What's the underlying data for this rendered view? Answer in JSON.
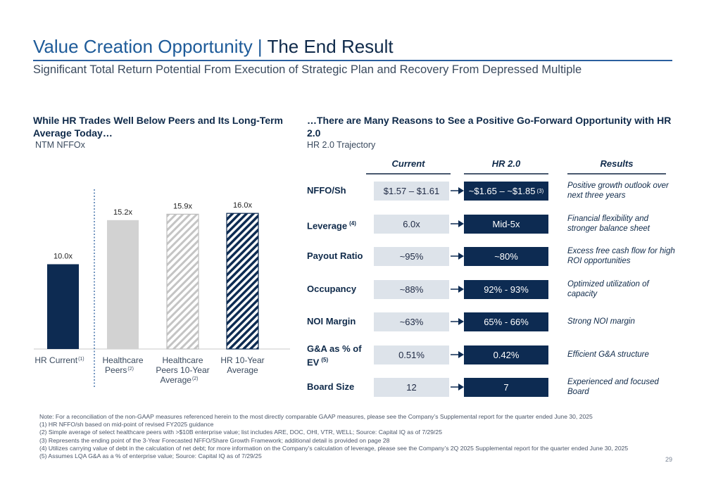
{
  "header": {
    "title_part1": "Value Creation Opportunity",
    "title_sep": " | ",
    "title_part2": "The End Result",
    "subtitle": "Significant Total Return Potential From Execution of Strategic Plan and Recovery From Depressed Multiple"
  },
  "left": {
    "heading": "While HR Trades Well Below Peers and Its Long-Term Average Today…",
    "subheading": "NTM NFFOx"
  },
  "chart_data": {
    "type": "bar",
    "categories": [
      "HR Current",
      "Healthcare Peers",
      "Healthcare Peers 10-Year Average",
      "HR 10-Year Average"
    ],
    "category_lines": [
      [
        "HR Current"
      ],
      [
        "Healthcare",
        "Peers"
      ],
      [
        "Healthcare",
        "Peers 10-Year",
        "Average"
      ],
      [
        "HR 10-Year",
        "Average"
      ]
    ],
    "category_footnotes": [
      "(1)",
      "(2)",
      "(2)",
      ""
    ],
    "values": [
      10.0,
      15.2,
      15.9,
      16.0
    ],
    "data_labels": [
      "10.0x",
      "15.2x",
      "15.9x",
      "16.0x"
    ],
    "fills": [
      "solid-navy",
      "solid-gray",
      "hatched-gray",
      "hatched-navy"
    ],
    "colors": {
      "navy": "#0d2b52",
      "gray": "#d2d2d2",
      "hatch_gray": "#bdbdbd"
    },
    "ylim": [
      0,
      18
    ],
    "grid": false,
    "title": "",
    "xlabel": "",
    "ylabel": ""
  },
  "right": {
    "heading": "…There are Many Reasons to See a Positive Go-Forward Opportunity with HR 2.0",
    "subheading": "HR 2.0 Trajectory",
    "col_current": "Current",
    "col_hr2": "HR 2.0",
    "col_results": "Results",
    "rows": [
      {
        "label": "NFFO/Sh",
        "label_sup": "",
        "current": "$1.57 – $1.61",
        "hr2": "~$1.65 – ~$1.85",
        "hr2_sup": "(3)",
        "result": "Positive growth outlook over next three years"
      },
      {
        "label": "Leverage",
        "label_sup": "(4)",
        "current": "6.0x",
        "hr2": "Mid-5x",
        "hr2_sup": "",
        "result": "Financial flexibility and stronger balance sheet"
      },
      {
        "label": "Payout Ratio",
        "label_sup": "",
        "current": "~95%",
        "hr2": "~80%",
        "hr2_sup": "",
        "result": "Excess free cash flow for high ROI opportunities"
      },
      {
        "label": "Occupancy",
        "label_sup": "",
        "current": "~88%",
        "hr2": "92% - 93%",
        "hr2_sup": "",
        "result": "Optimized utilization of capacity"
      },
      {
        "label": "NOI Margin",
        "label_sup": "",
        "current": "~63%",
        "hr2": "65% - 66%",
        "hr2_sup": "",
        "result": "Strong NOI margin"
      },
      {
        "label": "G&A as % of EV",
        "label_sup": "(5)",
        "current": "0.51%",
        "hr2": "0.42%",
        "hr2_sup": "",
        "result": "Efficient G&A structure"
      },
      {
        "label": "Board Size",
        "label_sup": "",
        "current": "12",
        "hr2": "7",
        "hr2_sup": "",
        "result": "Experienced and focused Board"
      }
    ]
  },
  "notes": [
    "Note: For a reconciliation of the non-GAAP measures referenced herein to the most directly comparable GAAP measures, please see the Company’s Supplemental report for the quarter ended June 30, 2025",
    "(1)   HR NFFO/sh based on mid-point of revised FY2025 guidance",
    "(2)   Simple average of select healthcare peers with >$10B enterprise value; list includes ARE, DOC, OHI, VTR, WELL; Source: Capital IQ as of 7/29/25",
    "(3)   Represents the ending point of the 3-Year Forecasted NFFO/Share Growth Framework; additional detail is provided on page 28",
    "(4)   Utilizes carrying value of debt in the calculation of net debt; for more information on the Company’s calculation of leverage, please see the Company’s 2Q 2025 Supplemental report for the quarter ended June 30, 2025",
    "(5)   Assumes LQA G&A as a % of enterprise value; Source: Capital IQ as of 7/29/25"
  ],
  "page_number": "29"
}
